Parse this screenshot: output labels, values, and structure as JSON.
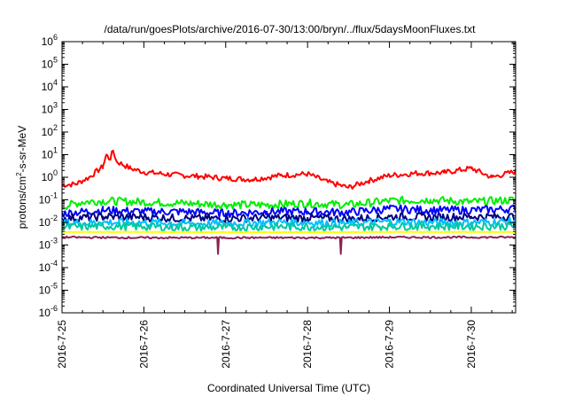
{
  "chart_data": {
    "type": "line",
    "title": "/data/run/goesPlots/archive/2016-07-30/13:00/bryn/../flux/5daysMoonFluxes.txt",
    "xlabel": "Coordinated Universal Time (UTC)",
    "ylabel": {
      "prefix": "protons/cm",
      "sup": "2",
      "suffix": "-s-sr-MeV"
    },
    "y_scale": "log",
    "ylim": [
      1e-06,
      1000000.0
    ],
    "y_tick_values": [
      1e-06,
      1e-05,
      0.0001,
      0.001,
      0.01,
      0.1,
      1,
      10,
      100,
      1000,
      10000,
      100000,
      1000000
    ],
    "y_tick_labels": [
      {
        "base": "10",
        "exp": "-6"
      },
      {
        "base": "10",
        "exp": "-5"
      },
      {
        "base": "10",
        "exp": "-4"
      },
      {
        "base": "10",
        "exp": "-3"
      },
      {
        "base": "10",
        "exp": "-2"
      },
      {
        "base": "10",
        "exp": "-1"
      },
      {
        "base": "10",
        "exp": "0"
      },
      {
        "base": "10",
        "exp": "1"
      },
      {
        "base": "10",
        "exp": "2"
      },
      {
        "base": "10",
        "exp": "3"
      },
      {
        "base": "10",
        "exp": "4"
      },
      {
        "base": "10",
        "exp": "5"
      },
      {
        "base": "10",
        "exp": "6"
      }
    ],
    "xlim": [
      "2016-07-25",
      "2016-07-30T13:00"
    ],
    "x_ticks": [
      "2016-07-25",
      "2016-07-26",
      "2016-07-27",
      "2016-07-28",
      "2016-07-29",
      "2016-07-30"
    ],
    "x_tick_labels": [
      "2016-7-25",
      "2016-7-26",
      "2016-7-27",
      "2016-7-28",
      "2016-7-29",
      "2016-7-30"
    ],
    "grid": false,
    "series": [
      {
        "color": "#ff0000",
        "x": [
          "2016-07-25T00:00",
          "2016-07-25T04:00",
          "2016-07-25T08:00",
          "2016-07-25T12:00",
          "2016-07-25T13:00",
          "2016-07-25T14:00",
          "2016-07-25T15:00",
          "2016-07-25T16:00",
          "2016-07-25T20:00",
          "2016-07-26T00:00",
          "2016-07-26T08:00",
          "2016-07-26T16:00",
          "2016-07-27T00:00",
          "2016-07-27T08:00",
          "2016-07-27T16:00",
          "2016-07-28T00:00",
          "2016-07-28T06:00",
          "2016-07-28T12:00",
          "2016-07-28T18:00",
          "2016-07-29T00:00",
          "2016-07-29T08:00",
          "2016-07-29T16:00",
          "2016-07-30T00:00",
          "2016-07-30T06:00",
          "2016-07-30T13:00"
        ],
        "y": [
          0.45,
          0.5,
          1.0,
          3.0,
          10.0,
          6.0,
          15.0,
          5.0,
          2.5,
          1.7,
          1.3,
          1.1,
          0.9,
          0.8,
          1.2,
          1.4,
          0.6,
          0.35,
          0.7,
          1.2,
          1.5,
          1.6,
          2.5,
          1.0,
          1.8
        ]
      },
      {
        "color": "#00ee00",
        "x": [
          "2016-07-25T00:00",
          "2016-07-25T06:00",
          "2016-07-25T12:00",
          "2016-07-26T00:00",
          "2016-07-26T12:00",
          "2016-07-27T00:00",
          "2016-07-27T12:00",
          "2016-07-28T00:00",
          "2016-07-28T12:00",
          "2016-07-29T00:00",
          "2016-07-29T12:00",
          "2016-07-30T00:00",
          "2016-07-30T13:00"
        ],
        "y": [
          0.05,
          0.08,
          0.09,
          0.08,
          0.07,
          0.06,
          0.06,
          0.07,
          0.06,
          0.09,
          0.1,
          0.08,
          0.1
        ]
      },
      {
        "color": "#0000ff",
        "x": [
          "2016-07-25T00:00",
          "2016-07-25T12:00",
          "2016-07-26T00:00",
          "2016-07-26T12:00",
          "2016-07-27T00:00",
          "2016-07-27T12:00",
          "2016-07-28T00:00",
          "2016-07-28T12:00",
          "2016-07-29T00:00",
          "2016-07-29T12:00",
          "2016-07-30T00:00",
          "2016-07-30T13:00"
        ],
        "y": [
          0.025,
          0.035,
          0.03,
          0.03,
          0.025,
          0.03,
          0.03,
          0.028,
          0.04,
          0.035,
          0.035,
          0.04
        ]
      },
      {
        "color": "#000080",
        "x": [
          "2016-07-25T00:00",
          "2016-07-25T12:00",
          "2016-07-26T00:00",
          "2016-07-26T12:00",
          "2016-07-27T00:00",
          "2016-07-27T12:00",
          "2016-07-28T00:00",
          "2016-07-28T12:00",
          "2016-07-29T00:00",
          "2016-07-29T12:00",
          "2016-07-30T00:00",
          "2016-07-30T13:00"
        ],
        "y": [
          0.015,
          0.018,
          0.017,
          0.015,
          0.015,
          0.016,
          0.016,
          0.014,
          0.018,
          0.017,
          0.018,
          0.018
        ]
      },
      {
        "color": "#00bfff",
        "x": [
          "2016-07-25T00:00",
          "2016-07-25T12:00",
          "2016-07-26T00:00",
          "2016-07-26T12:00",
          "2016-07-27T00:00",
          "2016-07-27T12:00",
          "2016-07-28T00:00",
          "2016-07-28T12:00",
          "2016-07-29T00:00",
          "2016-07-29T12:00",
          "2016-07-30T00:00",
          "2016-07-30T13:00"
        ],
        "y": [
          0.009,
          0.01,
          0.01,
          0.009,
          0.009,
          0.01,
          0.01,
          0.009,
          0.011,
          0.01,
          0.01,
          0.011
        ]
      },
      {
        "color": "#00c8a0",
        "x": [
          "2016-07-25T00:00",
          "2016-07-25T12:00",
          "2016-07-26T00:00",
          "2016-07-26T12:00",
          "2016-07-27T00:00",
          "2016-07-27T12:00",
          "2016-07-28T00:00",
          "2016-07-28T12:00",
          "2016-07-29T00:00",
          "2016-07-29T12:00",
          "2016-07-30T00:00",
          "2016-07-30T13:00"
        ],
        "y": [
          0.006,
          0.007,
          0.0065,
          0.006,
          0.006,
          0.0065,
          0.0065,
          0.006,
          0.007,
          0.0068,
          0.0068,
          0.007
        ]
      },
      {
        "color": "#ffff00",
        "x": [
          "2016-07-25T00:00",
          "2016-07-26T00:00",
          "2016-07-27T00:00",
          "2016-07-28T00:00",
          "2016-07-29T00:00",
          "2016-07-30T00:00",
          "2016-07-30T13:00"
        ],
        "y": [
          0.0038,
          0.0038,
          0.0037,
          0.0037,
          0.0038,
          0.0038,
          0.0038
        ]
      },
      {
        "color": "#8b2252",
        "x": [
          "2016-07-25T00:00",
          "2016-07-26T00:00",
          "2016-07-26T21:30",
          "2016-07-26T21:45",
          "2016-07-26T22:00",
          "2016-07-27T12:00",
          "2016-07-28T09:30",
          "2016-07-28T09:45",
          "2016-07-28T10:00",
          "2016-07-29T00:00",
          "2016-07-30T00:00",
          "2016-07-30T13:00"
        ],
        "y": [
          0.0022,
          0.0021,
          0.0021,
          0.0004,
          0.0021,
          0.0021,
          0.0021,
          0.0004,
          0.0021,
          0.0022,
          0.0022,
          0.0022
        ]
      }
    ]
  }
}
